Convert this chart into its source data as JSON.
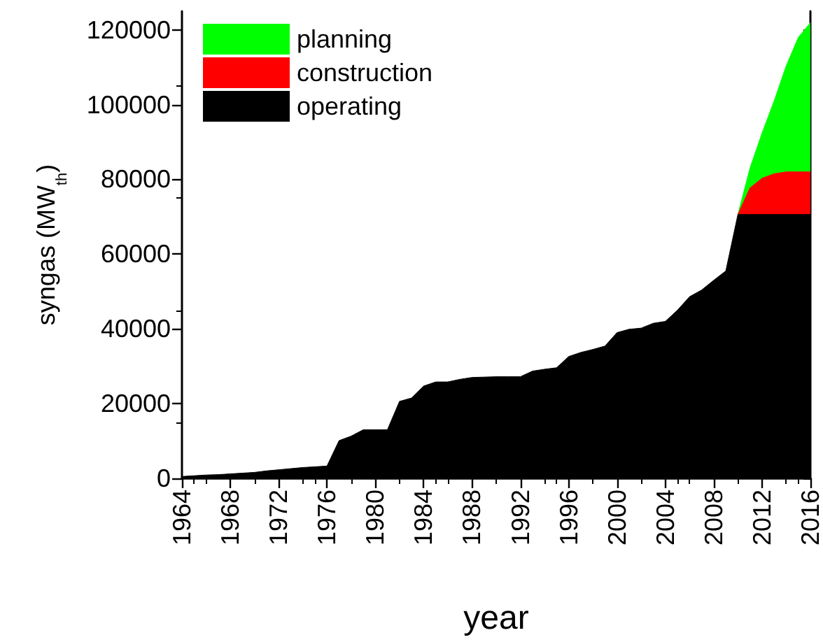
{
  "chart_data": {
    "type": "area",
    "stacked": true,
    "xlabel": "year",
    "ylabel": "syngas (MW$_{th}$)",
    "x": [
      1964,
      1965,
      1966,
      1967,
      1968,
      1969,
      1970,
      1971,
      1972,
      1973,
      1974,
      1975,
      1976,
      1977,
      1978,
      1979,
      1980,
      1981,
      1982,
      1983,
      1984,
      1985,
      1986,
      1987,
      1988,
      1989,
      1990,
      1991,
      1992,
      1993,
      1994,
      1995,
      1996,
      1997,
      1998,
      1999,
      2000,
      2001,
      2002,
      2003,
      2004,
      2005,
      2006,
      2007,
      2008,
      2009,
      2010,
      2011,
      2012,
      2013,
      2014,
      2015,
      2016
    ],
    "series": [
      {
        "name": "operating",
        "color": "#000000",
        "values": [
          500,
          700,
          900,
          1000,
          1200,
          1400,
          1600,
          2000,
          2300,
          2600,
          2900,
          3100,
          3300,
          10100,
          11300,
          13000,
          13000,
          13000,
          20600,
          21500,
          24700,
          25800,
          25800,
          26500,
          27000,
          27100,
          27200,
          27200,
          27200,
          28700,
          29200,
          29600,
          32600,
          33700,
          34500,
          35400,
          39000,
          39900,
          40200,
          41500,
          42000,
          45000,
          48600,
          50400,
          53000,
          55500,
          70600,
          70600,
          70600,
          70600,
          70600,
          70600,
          70600
        ]
      },
      {
        "name": "construction",
        "color": "#ff0000",
        "values": [
          null,
          null,
          null,
          null,
          null,
          null,
          null,
          null,
          null,
          null,
          null,
          null,
          null,
          null,
          null,
          null,
          null,
          null,
          null,
          null,
          null,
          null,
          null,
          null,
          null,
          null,
          null,
          null,
          null,
          null,
          null,
          null,
          null,
          null,
          null,
          null,
          null,
          null,
          null,
          null,
          null,
          null,
          null,
          null,
          null,
          null,
          0,
          7100,
          9700,
          10900,
          11400,
          11400,
          11400
        ]
      },
      {
        "name": "planning",
        "color": "#00ff00",
        "values": [
          null,
          null,
          null,
          null,
          null,
          null,
          null,
          null,
          null,
          null,
          null,
          null,
          null,
          null,
          null,
          null,
          null,
          null,
          null,
          null,
          null,
          null,
          null,
          null,
          null,
          null,
          null,
          null,
          null,
          null,
          null,
          null,
          null,
          null,
          null,
          null,
          null,
          null,
          null,
          null,
          null,
          null,
          null,
          null,
          null,
          null,
          0,
          5300,
          12100,
          19500,
          28400,
          36000,
          39900
        ]
      }
    ],
    "xlim": [
      1964,
      2016
    ],
    "xticks": [
      1964,
      1968,
      1972,
      1976,
      1980,
      1984,
      1988,
      1992,
      1996,
      2000,
      2004,
      2008,
      2012,
      2016
    ],
    "ylim": [
      0,
      125000
    ],
    "yticks": [
      0,
      20000,
      40000,
      60000,
      80000,
      100000,
      120000
    ],
    "legend": "top left",
    "grid": false,
    "marker": "none"
  }
}
